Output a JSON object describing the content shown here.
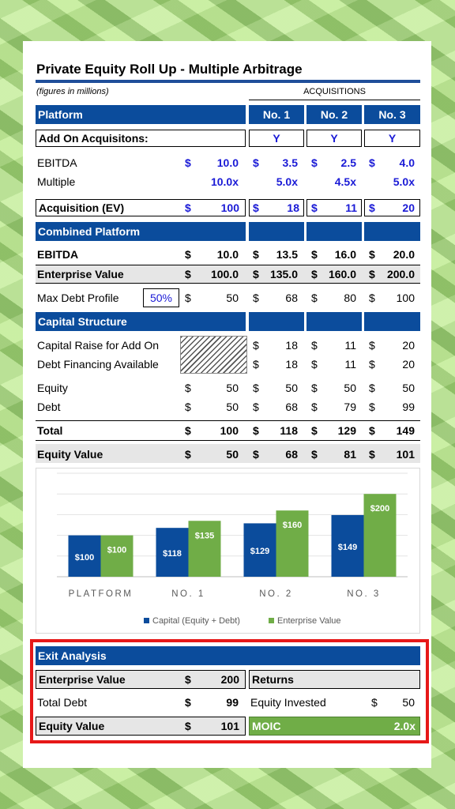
{
  "title": "Private Equity Roll Up - Multiple Arbitrage",
  "subtitle": "(figures in millions)",
  "acquisitions_header": "ACQUISITIONS",
  "platform_header": "Platform",
  "columns": [
    "No. 1",
    "No. 2",
    "No. 3"
  ],
  "add_on": {
    "label": "Add On Acquisitons:",
    "values": [
      "Y",
      "Y",
      "Y"
    ]
  },
  "ebitda": {
    "label": "EBITDA",
    "platform": "10.0",
    "values": [
      "3.5",
      "2.5",
      "4.0"
    ]
  },
  "multiple": {
    "label": "Multiple",
    "platform": "10.0x",
    "values": [
      "5.0x",
      "4.5x",
      "5.0x"
    ]
  },
  "acquisition_ev": {
    "label": "Acquisition (EV)",
    "platform": "100",
    "values": [
      "18",
      "11",
      "20"
    ]
  },
  "combined_header": "Combined Platform",
  "combined_ebitda": {
    "label": "EBITDA",
    "platform": "10.0",
    "values": [
      "13.5",
      "16.0",
      "20.0"
    ]
  },
  "enterprise_value": {
    "label": "Enterprise Value",
    "platform": "100.0",
    "values": [
      "135.0",
      "160.0",
      "200.0"
    ]
  },
  "max_debt": {
    "label": "Max Debt Profile",
    "input": "50%",
    "platform": "50",
    "values": [
      "68",
      "80",
      "100"
    ]
  },
  "capital_header": "Capital Structure",
  "capital_raise": {
    "label": "Capital Raise for Add On",
    "values": [
      "18",
      "11",
      "20"
    ]
  },
  "debt_financing": {
    "label": "Debt Financing Available",
    "values": [
      "18",
      "11",
      "20"
    ]
  },
  "equity": {
    "label": "Equity",
    "platform": "50",
    "values": [
      "50",
      "50",
      "50"
    ]
  },
  "debt": {
    "label": "Debt",
    "platform": "50",
    "values": [
      "68",
      "79",
      "99"
    ]
  },
  "total": {
    "label": "Total",
    "platform": "100",
    "values": [
      "118",
      "129",
      "149"
    ]
  },
  "equity_value": {
    "label": "Equity Value",
    "platform": "50",
    "values": [
      "68",
      "81",
      "101"
    ]
  },
  "currency": "$",
  "chart_data": {
    "type": "bar",
    "categories": [
      "PLATFORM",
      "NO. 1",
      "NO. 2",
      "NO. 3"
    ],
    "series": [
      {
        "name": "Capital (Equity + Debt)",
        "values": [
          100,
          118,
          129,
          149
        ],
        "labels": [
          "$100",
          "$118",
          "$129",
          "$149"
        ],
        "color": "#0b4c9c"
      },
      {
        "name": "Enterprise Value",
        "values": [
          100,
          135,
          160,
          200
        ],
        "labels": [
          "$100",
          "$135",
          "$160",
          "$200"
        ],
        "color": "#70ad47"
      }
    ],
    "ylim": [
      0,
      250
    ],
    "grid": true,
    "legend": "bottom"
  },
  "exit": {
    "header": "Exit Analysis",
    "enterprise_value": {
      "label": "Enterprise Value",
      "value": "200"
    },
    "total_debt": {
      "label": "Total Debt",
      "value": "99"
    },
    "equity_value": {
      "label": "Equity Value",
      "value": "101"
    },
    "returns_header": "Returns",
    "equity_invested": {
      "label": "Equity Invested",
      "value": "50"
    },
    "moic": {
      "label": "MOIC",
      "value": "2.0x"
    }
  }
}
